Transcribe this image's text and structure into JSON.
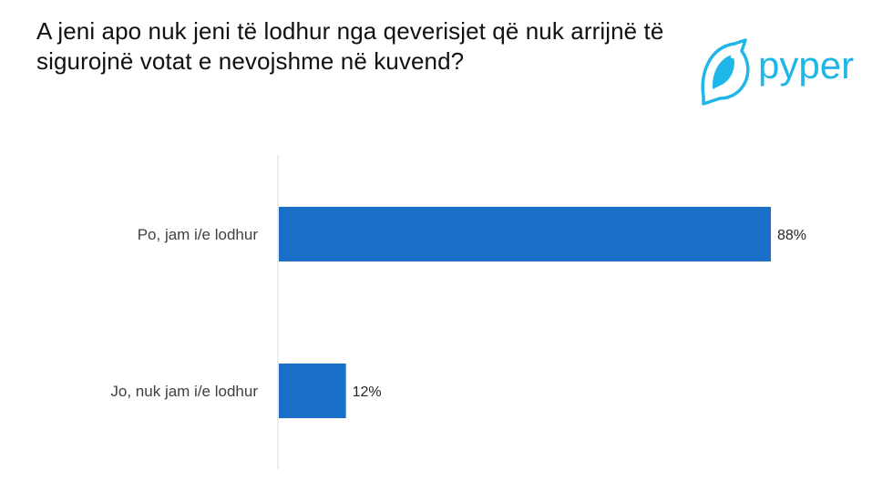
{
  "title": "A jeni apo nuk jeni të lodhur nga qeverisjet që nuk arrijnë të sigurojnë votat e nevojshme në kuvend?",
  "logo": {
    "text": "pyper",
    "icon": "bird-icon",
    "color": "#1fb6e8"
  },
  "chart_data": {
    "type": "bar",
    "orientation": "horizontal",
    "categories": [
      "Po, jam i/e lodhur",
      "Jo, nuk jam i/e lodhur"
    ],
    "values": [
      88,
      12
    ],
    "data_labels": [
      "88%",
      "12%"
    ],
    "xlim": [
      0,
      100
    ],
    "bar_color": "#1a6fc9",
    "grid": false
  }
}
